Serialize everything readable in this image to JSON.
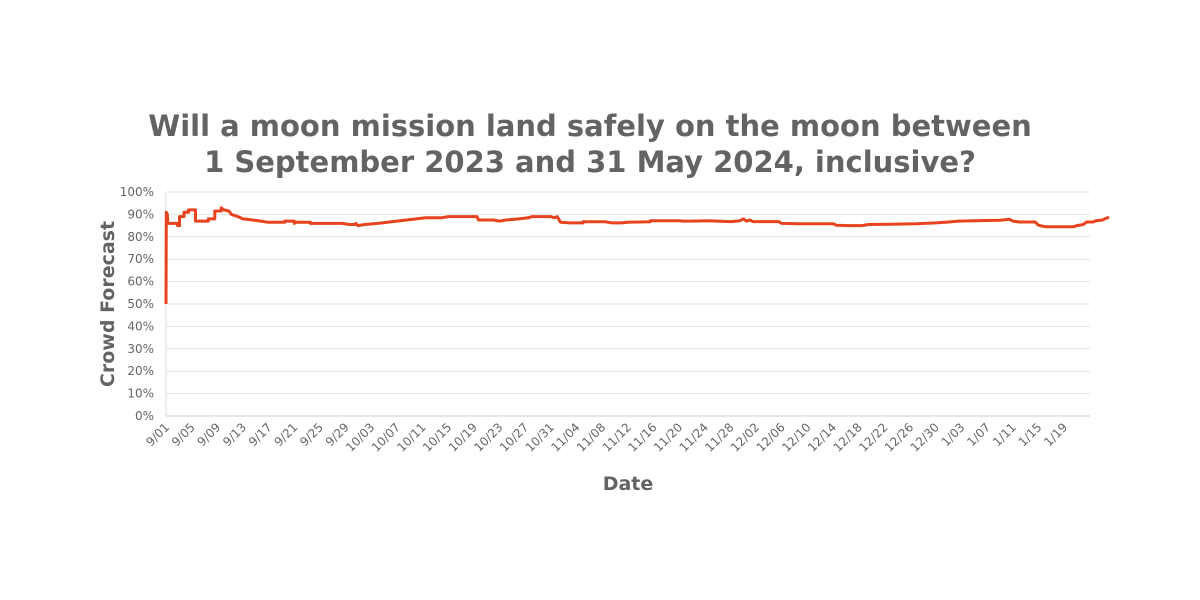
{
  "chart_data": {
    "type": "line",
    "title": "Will a moon mission land safely on the moon between 1 September 2023 and 31 May 2024, inclusive?",
    "title_lines": [
      "Will a moon mission land safely on the moon between",
      "1 September 2023 and 31 May 2024, inclusive?"
    ],
    "xlabel": "Date",
    "ylabel": "Crowd Forecast",
    "ylim": [
      0,
      1
    ],
    "y_ticks": [
      "0%",
      "10%",
      "20%",
      "30%",
      "40%",
      "50%",
      "60%",
      "70%",
      "80%",
      "90%",
      "100%"
    ],
    "x_ticks": [
      "9/01",
      "9/05",
      "9/09",
      "9/13",
      "9/17",
      "9/21",
      "9/25",
      "9/29",
      "10/03",
      "10/07",
      "10/11",
      "10/15",
      "10/19",
      "10/23",
      "10/27",
      "10/31",
      "11/04",
      "11/08",
      "11/12",
      "11/16",
      "11/20",
      "11/24",
      "11/28",
      "12/02",
      "12/06",
      "12/10",
      "12/14",
      "12/18",
      "12/22",
      "12/26",
      "12/30",
      "1/03",
      "1/07",
      "1/11",
      "1/15",
      "1/19"
    ],
    "grid": true,
    "legend": "none",
    "line_color": "#e8431f",
    "series": [
      {
        "name": "Crowd Forecast",
        "points": [
          {
            "day": 0.0,
            "value": 0.5
          },
          {
            "day": 0.05,
            "value": 0.91
          },
          {
            "day": 0.2,
            "value": 0.9
          },
          {
            "day": 0.3,
            "value": 0.86
          },
          {
            "day": 1.8,
            "value": 0.86
          },
          {
            "day": 1.8,
            "value": 0.85
          },
          {
            "day": 2.1,
            "value": 0.85
          },
          {
            "day": 2.1,
            "value": 0.89
          },
          {
            "day": 2.8,
            "value": 0.89
          },
          {
            "day": 2.8,
            "value": 0.91
          },
          {
            "day": 3.5,
            "value": 0.91
          },
          {
            "day": 3.5,
            "value": 0.92
          },
          {
            "day": 4.6,
            "value": 0.92
          },
          {
            "day": 4.6,
            "value": 0.87
          },
          {
            "day": 6.6,
            "value": 0.87
          },
          {
            "day": 6.6,
            "value": 0.88
          },
          {
            "day": 7.6,
            "value": 0.88
          },
          {
            "day": 7.6,
            "value": 0.915
          },
          {
            "day": 8.6,
            "value": 0.915
          },
          {
            "day": 8.6,
            "value": 0.93
          },
          {
            "day": 9.0,
            "value": 0.92
          },
          {
            "day": 9.8,
            "value": 0.915
          },
          {
            "day": 10.2,
            "value": 0.9
          },
          {
            "day": 11.2,
            "value": 0.89
          },
          {
            "day": 12.0,
            "value": 0.88
          },
          {
            "day": 13.5,
            "value": 0.875
          },
          {
            "day": 14.8,
            "value": 0.87
          },
          {
            "day": 15.8,
            "value": 0.865
          },
          {
            "day": 17.0,
            "value": 0.865
          },
          {
            "day": 18.5,
            "value": 0.865
          },
          {
            "day": 18.5,
            "value": 0.87
          },
          {
            "day": 20.0,
            "value": 0.87
          },
          {
            "day": 20.0,
            "value": 0.86
          },
          {
            "day": 20.3,
            "value": 0.865
          },
          {
            "day": 22.5,
            "value": 0.865
          },
          {
            "day": 22.5,
            "value": 0.86
          },
          {
            "day": 26.0,
            "value": 0.86
          },
          {
            "day": 27.5,
            "value": 0.86
          },
          {
            "day": 28.5,
            "value": 0.855
          },
          {
            "day": 29.5,
            "value": 0.855
          },
          {
            "day": 29.6,
            "value": 0.86
          },
          {
            "day": 29.9,
            "value": 0.85
          },
          {
            "day": 31.0,
            "value": 0.855
          },
          {
            "day": 33.0,
            "value": 0.86
          },
          {
            "day": 34.5,
            "value": 0.865
          },
          {
            "day": 36.0,
            "value": 0.87
          },
          {
            "day": 37.5,
            "value": 0.875
          },
          {
            "day": 39.0,
            "value": 0.88
          },
          {
            "day": 40.5,
            "value": 0.885
          },
          {
            "day": 43.0,
            "value": 0.885
          },
          {
            "day": 44.0,
            "value": 0.89
          },
          {
            "day": 48.5,
            "value": 0.89
          },
          {
            "day": 48.7,
            "value": 0.875
          },
          {
            "day": 51.0,
            "value": 0.875
          },
          {
            "day": 52.0,
            "value": 0.87
          },
          {
            "day": 53.0,
            "value": 0.875
          },
          {
            "day": 55.0,
            "value": 0.88
          },
          {
            "day": 56.5,
            "value": 0.885
          },
          {
            "day": 57.0,
            "value": 0.89
          },
          {
            "day": 60.0,
            "value": 0.89
          },
          {
            "day": 60.5,
            "value": 0.885
          },
          {
            "day": 61.0,
            "value": 0.89
          },
          {
            "day": 61.5,
            "value": 0.865
          },
          {
            "day": 63.0,
            "value": 0.862
          },
          {
            "day": 65.0,
            "value": 0.862
          },
          {
            "day": 65.0,
            "value": 0.867
          },
          {
            "day": 68.5,
            "value": 0.867
          },
          {
            "day": 69.5,
            "value": 0.862
          },
          {
            "day": 71.0,
            "value": 0.862
          },
          {
            "day": 72.0,
            "value": 0.865
          },
          {
            "day": 75.5,
            "value": 0.867
          },
          {
            "day": 75.5,
            "value": 0.872
          },
          {
            "day": 80.0,
            "value": 0.872
          },
          {
            "day": 80.5,
            "value": 0.87
          },
          {
            "day": 82.0,
            "value": 0.87
          },
          {
            "day": 84.5,
            "value": 0.872
          },
          {
            "day": 86.0,
            "value": 0.87
          },
          {
            "day": 88.0,
            "value": 0.868
          },
          {
            "day": 89.5,
            "value": 0.872
          },
          {
            "day": 90.0,
            "value": 0.88
          },
          {
            "day": 90.5,
            "value": 0.87
          },
          {
            "day": 91.0,
            "value": 0.875
          },
          {
            "day": 91.5,
            "value": 0.868
          },
          {
            "day": 92.0,
            "value": 0.868
          },
          {
            "day": 95.5,
            "value": 0.868
          },
          {
            "day": 96.0,
            "value": 0.86
          },
          {
            "day": 98.5,
            "value": 0.858
          },
          {
            "day": 101.0,
            "value": 0.858
          },
          {
            "day": 104.0,
            "value": 0.858
          },
          {
            "day": 104.5,
            "value": 0.852
          },
          {
            "day": 106.5,
            "value": 0.85
          },
          {
            "day": 108.5,
            "value": 0.85
          },
          {
            "day": 109.5,
            "value": 0.855
          },
          {
            "day": 113.0,
            "value": 0.856
          },
          {
            "day": 117.0,
            "value": 0.858
          },
          {
            "day": 120.0,
            "value": 0.862
          },
          {
            "day": 122.0,
            "value": 0.866
          },
          {
            "day": 123.5,
            "value": 0.87
          },
          {
            "day": 126.0,
            "value": 0.872
          },
          {
            "day": 130.0,
            "value": 0.874
          },
          {
            "day": 131.5,
            "value": 0.878
          },
          {
            "day": 132.0,
            "value": 0.87
          },
          {
            "day": 133.0,
            "value": 0.866
          },
          {
            "day": 135.5,
            "value": 0.866
          },
          {
            "day": 136.0,
            "value": 0.852
          },
          {
            "day": 137.0,
            "value": 0.845
          },
          {
            "day": 141.5,
            "value": 0.845
          },
          {
            "day": 142.0,
            "value": 0.85
          },
          {
            "day": 143.0,
            "value": 0.855
          },
          {
            "day": 143.5,
            "value": 0.866
          },
          {
            "day": 144.5,
            "value": 0.866
          },
          {
            "day": 145.0,
            "value": 0.872
          },
          {
            "day": 146.0,
            "value": 0.875
          },
          {
            "day": 146.5,
            "value": 0.882
          },
          {
            "day": 147.0,
            "value": 0.888
          }
        ]
      }
    ]
  }
}
